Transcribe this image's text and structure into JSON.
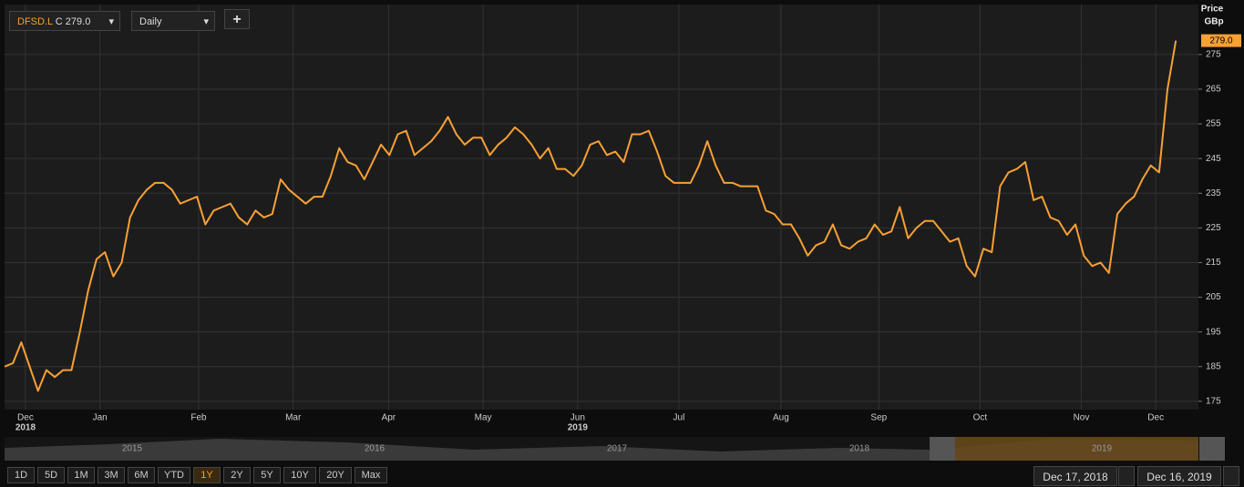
{
  "chart_data": {
    "type": "line",
    "ticker": "DFSD.L",
    "close_text": "C 279.0",
    "interval": "Daily",
    "add_button": "+",
    "axis_title": "Price",
    "axis_unit": "GBp",
    "last_label": "279.0",
    "color": "#f7a035",
    "values": [
      185,
      186,
      192,
      185,
      178,
      184,
      182,
      184,
      184,
      195,
      207,
      216,
      218,
      211,
      215,
      228,
      233,
      236,
      238,
      238,
      236,
      232,
      233,
      234,
      226,
      230,
      231,
      232,
      228,
      226,
      230,
      228,
      229,
      239,
      236,
      234,
      232,
      234,
      234,
      240,
      248,
      244,
      243,
      239,
      244,
      249,
      246,
      252,
      253,
      246,
      248,
      250,
      253,
      257,
      252,
      249,
      251,
      251,
      246,
      249,
      251,
      254,
      252,
      249,
      245,
      248,
      242,
      242,
      240,
      243,
      249,
      250,
      246,
      247,
      244,
      252,
      252,
      253,
      247,
      240,
      238,
      238,
      238,
      243,
      250,
      243,
      238,
      238,
      237,
      237,
      237,
      230,
      229,
      226,
      226,
      222,
      217,
      220,
      221,
      226,
      220,
      219,
      221,
      222,
      226,
      223,
      224,
      231,
      222,
      225,
      227,
      227,
      224,
      221,
      222,
      214,
      211,
      219,
      218,
      237,
      241,
      242,
      244,
      233,
      234,
      228,
      227,
      223,
      226,
      217,
      214,
      215,
      212,
      229,
      232,
      234,
      239,
      243,
      241,
      265,
      279
    ],
    "xlim": [
      0,
      142.7
    ],
    "xticks": [
      {
        "value": 2.5,
        "label": "Dec"
      },
      {
        "value": 11.4,
        "label": "Jan"
      },
      {
        "value": 23.2,
        "label": "Feb"
      },
      {
        "value": 34.5,
        "label": "Mar"
      },
      {
        "value": 45.9,
        "label": "Apr"
      },
      {
        "value": 57.2,
        "label": "May"
      },
      {
        "value": 68.5,
        "label": "Jun"
      },
      {
        "value": 80.6,
        "label": "Jul"
      },
      {
        "value": 92.8,
        "label": "Aug"
      },
      {
        "value": 104.5,
        "label": "Sep"
      },
      {
        "value": 116.6,
        "label": "Oct"
      },
      {
        "value": 128.7,
        "label": "Nov"
      },
      {
        "value": 137.6,
        "label": "Dec"
      }
    ],
    "year_labels": [
      {
        "value": 2.5,
        "label": "2018"
      },
      {
        "value": 68.5,
        "label": "2019"
      }
    ],
    "ylim": [
      172.6,
      289.4
    ],
    "yticks": [
      175,
      185,
      195,
      205,
      215,
      225,
      235,
      245,
      255,
      265,
      275
    ],
    "grid": true,
    "navigator_years": [
      "2015",
      "2016",
      "2017",
      "2018",
      "2019"
    ],
    "range_buttons": [
      "1D",
      "5D",
      "1M",
      "3M",
      "6M",
      "YTD",
      "1Y",
      "2Y",
      "5Y",
      "10Y",
      "20Y",
      "Max"
    ],
    "active_range": "1Y",
    "start_date": "Dec 17, 2018",
    "end_date": "Dec 16, 2019"
  }
}
